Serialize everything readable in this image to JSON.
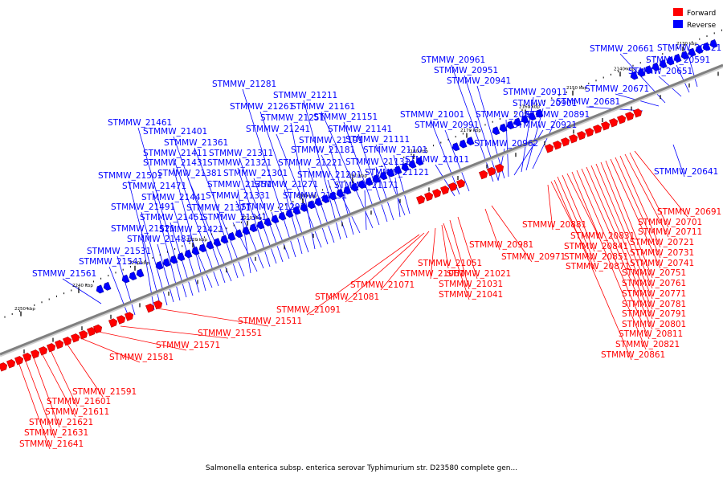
{
  "caption": "Salmonella enterica subsp. enterica serovar Typhimurium str. D23580 complete gen...",
  "legend": {
    "items": [
      {
        "label": "Forward",
        "color": "#ff0000"
      },
      {
        "label": "Reverse",
        "color": "#0000ff"
      }
    ]
  },
  "colors": {
    "forward": "#ff0000",
    "reverse": "#0000ff",
    "backbone": "#808080"
  },
  "scale_ticks": [
    "2130 kbp",
    "2140 kbp",
    "2150 kbp",
    "2160 kbp",
    "2170 kbp",
    "2180 kbp",
    "2190 kbp",
    "2200 kbp",
    "2210 kbp",
    "2220 kbp",
    "2230 kbp",
    "2240 kbp",
    "2250 kbp"
  ],
  "reverse_labels": [
    "STMMW_20521",
    "STMMW_20591",
    "STMMW_20641",
    "STMMW_20651",
    "STMMW_20661",
    "STMMW_20671",
    "STMMW_20681",
    "STMMW_20891",
    "STMMW_20901",
    "STMMW_20911",
    "STMMW_20921",
    "STMMW_20931",
    "STMMW_20941",
    "STMMW_20951",
    "STMMW_20961",
    "STMMW_20962",
    "STMMW_20991",
    "STMMW_21001",
    "STMMW_21011",
    "STMMW_21101",
    "STMMW_21111",
    "STMMW_21121",
    "STMMW_21131",
    "STMMW_21141",
    "STMMW_21151",
    "STMMW_21161",
    "STMMW_21171",
    "STMMW_21181",
    "STMMW_21191",
    "STMMW_21201",
    "STMMW_21211",
    "STMMW_21221",
    "STMMW_21231",
    "STMMW_21241",
    "STMMW_21251",
    "STMMW_21261",
    "STMMW_21271",
    "STMMW_21281",
    "STMMW_21291",
    "STMMW_21301",
    "STMMW_21311",
    "STMMW_21321",
    "STMMW_21331",
    "STMMW_21341",
    "STMMW_21351",
    "STMMW_21361",
    "STMMW_21371",
    "STMMW_21381",
    "STMMW_21401",
    "STMMW_21411",
    "STMMW_21421",
    "STMMW_21431",
    "STMMW_21441",
    "STMMW_21451",
    "STMMW_21461",
    "STMMW_21471",
    "STMMW_21481",
    "STMMW_21491",
    "STMMW_21501",
    "STMMW_21521",
    "STMMW_21531",
    "STMMW_21541",
    "STMMW_21561"
  ],
  "forward_labels": [
    "STMMW_20691",
    "STMMW_20701",
    "STMMW_20711",
    "STMMW_20721",
    "STMMW_20731",
    "STMMW_20741",
    "STMMW_20751",
    "STMMW_20761",
    "STMMW_20771",
    "STMMW_20781",
    "STMMW_20791",
    "STMMW_20801",
    "STMMW_20811",
    "STMMW_20821",
    "STMMW_20831",
    "STMMW_20841",
    "STMMW_20851",
    "STMMW_20861",
    "STMMW_20871",
    "STMMW_20881",
    "STMMW_20971",
    "STMMW_20981",
    "STMMW_21021",
    "STMMW_21031",
    "STMMW_21041",
    "STMMW_21051",
    "STMMW_21061",
    "STMMW_21071",
    "STMMW_21081",
    "STMMW_21091",
    "STMMW_21511",
    "STMMW_21551",
    "STMMW_21571",
    "STMMW_21581",
    "STMMW_21591",
    "STMMW_21601",
    "STMMW_21611",
    "STMMW_21621",
    "STMMW_21631",
    "STMMW_21641"
  ]
}
